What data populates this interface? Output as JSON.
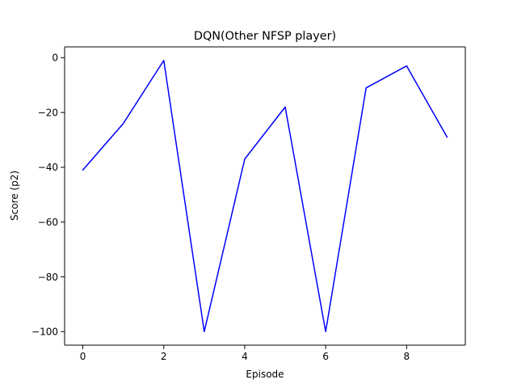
{
  "chart_data": {
    "type": "line",
    "title": "DQN(Other NFSP player)",
    "xlabel": "Episode",
    "ylabel": "Score (p2)",
    "x": [
      0,
      1,
      2,
      3,
      4,
      5,
      6,
      7,
      8,
      9
    ],
    "series": [
      {
        "values": [
          -41,
          -24,
          -1,
          -100,
          -37,
          -18,
          -100,
          -11,
          -3,
          -29
        ],
        "color": "#0000ff"
      }
    ],
    "xlim": [
      -0.45,
      9.45
    ],
    "ylim": [
      -104.95,
      3.95
    ],
    "xticks": [
      0,
      2,
      4,
      6,
      8
    ],
    "xtick_labels": [
      "0",
      "2",
      "4",
      "6",
      "8"
    ],
    "yticks": [
      0,
      -20,
      -40,
      -60,
      -80,
      -100
    ],
    "ytick_labels": [
      "0",
      "−20",
      "−40",
      "−60",
      "−80",
      "−100"
    ],
    "grid": false,
    "legend": false
  }
}
